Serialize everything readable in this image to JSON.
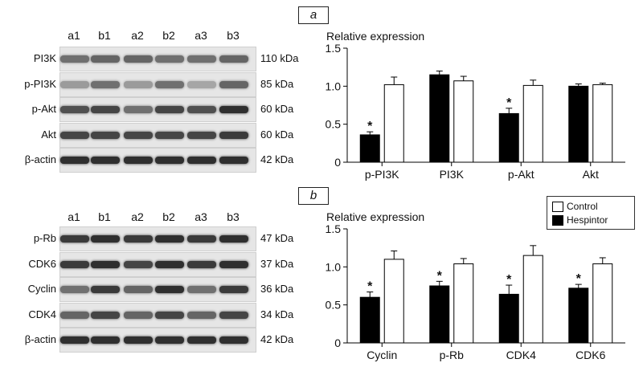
{
  "panels": [
    {
      "tag": "a",
      "lanes": [
        "a1",
        "b1",
        "a2",
        "b2",
        "a3",
        "b3"
      ],
      "blots": [
        {
          "protein": "PI3K",
          "kda": "110 kDa",
          "intensity": [
            0.55,
            0.6,
            0.6,
            0.55,
            0.55,
            0.6
          ]
        },
        {
          "protein": "p-PI3K",
          "kda": "85 kDa",
          "intensity": [
            0.35,
            0.55,
            0.35,
            0.55,
            0.3,
            0.6
          ]
        },
        {
          "protein": "p-Akt",
          "kda": "60 kDa",
          "intensity": [
            0.7,
            0.75,
            0.55,
            0.75,
            0.7,
            0.85
          ]
        },
        {
          "protein": "Akt",
          "kda": "60 kDa",
          "intensity": [
            0.75,
            0.75,
            0.75,
            0.75,
            0.75,
            0.8
          ]
        },
        {
          "protein": "β-actin",
          "kda": "42 kDa",
          "intensity": [
            0.85,
            0.85,
            0.85,
            0.85,
            0.85,
            0.85
          ]
        }
      ],
      "ylabel": "Relative expression"
    },
    {
      "tag": "b",
      "lanes": [
        "a1",
        "b1",
        "a2",
        "b2",
        "a3",
        "b3"
      ],
      "blots": [
        {
          "protein": "p-Rb",
          "kda": "47 kDa",
          "intensity": [
            0.8,
            0.85,
            0.8,
            0.85,
            0.8,
            0.85
          ]
        },
        {
          "protein": "CDK6",
          "kda": "37 kDa",
          "intensity": [
            0.8,
            0.85,
            0.75,
            0.85,
            0.8,
            0.85
          ]
        },
        {
          "protein": "Cyclin",
          "kda": "36 kDa",
          "intensity": [
            0.55,
            0.8,
            0.6,
            0.85,
            0.55,
            0.8
          ]
        },
        {
          "protein": "CDK4",
          "kda": "34 kDa",
          "intensity": [
            0.6,
            0.75,
            0.6,
            0.75,
            0.6,
            0.75
          ]
        },
        {
          "protein": "β-actin",
          "kda": "42 kDa",
          "intensity": [
            0.85,
            0.85,
            0.85,
            0.85,
            0.85,
            0.85
          ]
        }
      ],
      "ylabel": "Relative expression"
    }
  ],
  "legend": [
    {
      "name": "Control",
      "color": "#ffffff"
    },
    {
      "name": "Hespintor",
      "color": "#000000"
    }
  ],
  "chart_data": [
    {
      "type": "bar",
      "ylabel": "Relative expression",
      "categories": [
        "p-PI3K",
        "PI3K",
        "p-Akt",
        "Akt"
      ],
      "ylim": [
        0,
        1.5
      ],
      "yticks": [
        "0",
        "0.5",
        "1.0",
        "1.5"
      ],
      "series": [
        {
          "name": "Hespintor",
          "color": "#000000",
          "values": [
            0.36,
            1.15,
            0.64,
            1.0
          ],
          "errors": [
            0.04,
            0.05,
            0.07,
            0.03
          ],
          "significant": [
            true,
            false,
            true,
            false
          ]
        },
        {
          "name": "Control",
          "color": "#ffffff",
          "values": [
            1.02,
            1.07,
            1.01,
            1.02
          ],
          "errors": [
            0.1,
            0.06,
            0.07,
            0.02
          ],
          "significant": [
            false,
            false,
            false,
            false
          ]
        }
      ]
    },
    {
      "type": "bar",
      "ylabel": "Relative expression",
      "categories": [
        "Cyclin",
        "p-Rb",
        "CDK4",
        "CDK6"
      ],
      "ylim": [
        0,
        1.5
      ],
      "yticks": [
        "0",
        "0.5",
        "1.0",
        "1.5"
      ],
      "series": [
        {
          "name": "Hespintor",
          "color": "#000000",
          "values": [
            0.6,
            0.75,
            0.64,
            0.72
          ],
          "errors": [
            0.07,
            0.06,
            0.12,
            0.05
          ],
          "significant": [
            true,
            true,
            true,
            true
          ]
        },
        {
          "name": "Control",
          "color": "#ffffff",
          "values": [
            1.1,
            1.04,
            1.15,
            1.04
          ],
          "errors": [
            0.11,
            0.07,
            0.13,
            0.08
          ],
          "significant": [
            false,
            false,
            false,
            false
          ]
        }
      ]
    }
  ],
  "significance_mark": "*"
}
